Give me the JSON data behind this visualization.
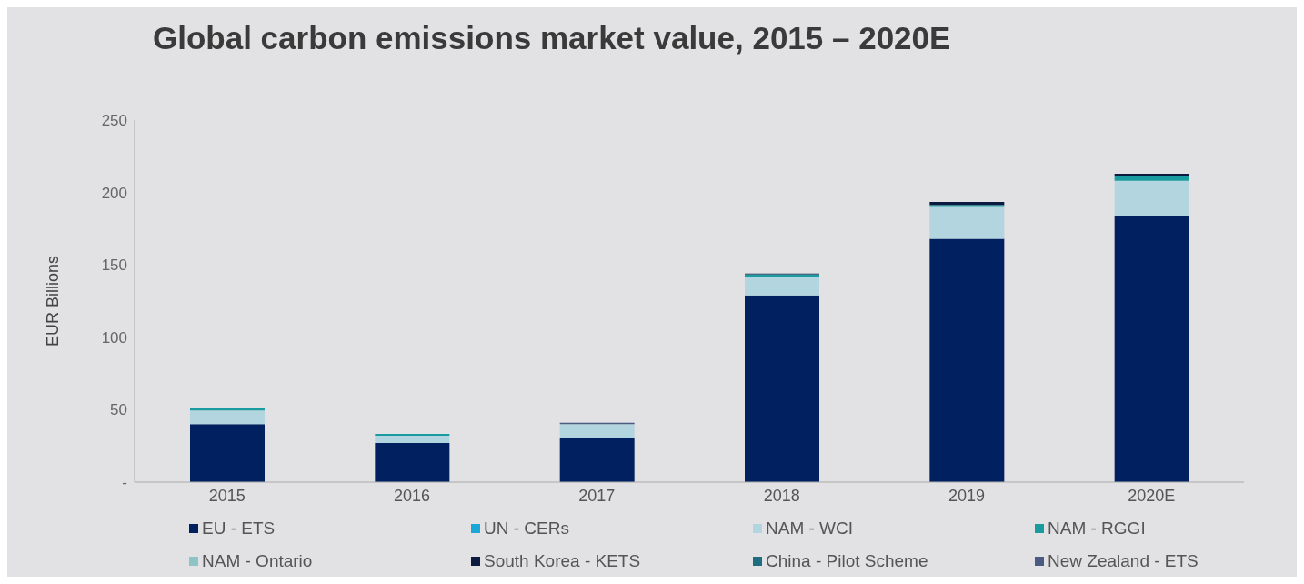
{
  "chart_data": {
    "type": "bar",
    "title": "Global carbon emissions market value, 2015 – 2020E",
    "ylabel": "EUR Billions",
    "categories": [
      "2015",
      "2016",
      "2017",
      "2018",
      "2019",
      "2020E"
    ],
    "stacked": true,
    "ylim": [
      0,
      250
    ],
    "yticks": [
      {
        "value": 0,
        "label": "-"
      },
      50,
      100,
      150,
      200,
      250
    ],
    "grid": false,
    "legend": "bottom",
    "series": [
      {
        "name": "EU - ETS",
        "color": "#002060",
        "values": [
          40,
          27,
          30.5,
          129,
          168,
          184
        ]
      },
      {
        "name": "UN - CERs",
        "color": "#1aa7d8",
        "values": [
          0,
          0,
          0,
          0,
          0,
          0
        ]
      },
      {
        "name": "NAM - WCI",
        "color": "#b3d5df",
        "values": [
          9.5,
          5,
          9.5,
          13,
          22,
          24
        ]
      },
      {
        "name": "NAM - RGGI",
        "color": "#1a9ba0",
        "values": [
          2,
          1.3,
          0,
          1.5,
          1.5,
          3
        ]
      },
      {
        "name": "NAM - Ontario",
        "color": "#8fc4c6",
        "values": [
          0,
          0,
          0,
          0,
          0,
          0
        ]
      },
      {
        "name": "South Korea - KETS",
        "color": "#0d1a40",
        "values": [
          0,
          0,
          0,
          0.5,
          2,
          2
        ]
      },
      {
        "name": "China - Pilot Scheme",
        "color": "#1f6e80",
        "values": [
          0,
          0,
          0,
          0,
          0,
          0
        ]
      },
      {
        "name": "New Zealand - ETS",
        "color": "#4a5a80",
        "values": [
          0,
          0,
          1,
          0,
          0,
          0
        ]
      }
    ]
  }
}
